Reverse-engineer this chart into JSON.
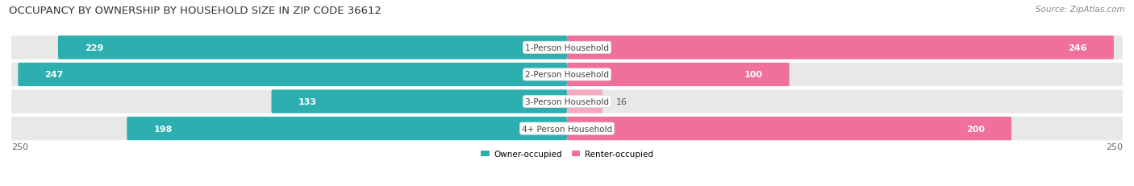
{
  "title": "OCCUPANCY BY OWNERSHIP BY HOUSEHOLD SIZE IN ZIP CODE 36612",
  "source": "Source: ZipAtlas.com",
  "categories": [
    "1-Person Household",
    "2-Person Household",
    "3-Person Household",
    "4+ Person Household"
  ],
  "owner_values": [
    229,
    247,
    133,
    198
  ],
  "renter_values": [
    246,
    100,
    16,
    200
  ],
  "owner_color_dark": "#2DAFAF",
  "owner_color_light": "#7DD4D4",
  "renter_color_dark": "#EF7098",
  "renter_color_light": "#F5AABF",
  "max_val": 250,
  "owner_label": "Owner-occupied",
  "renter_label": "Renter-occupied",
  "background_color": "#ffffff",
  "row_bg_color": "#e8e8e8",
  "title_fontsize": 9.5,
  "source_fontsize": 7.5,
  "value_fontsize": 8,
  "label_fontsize": 7.5
}
